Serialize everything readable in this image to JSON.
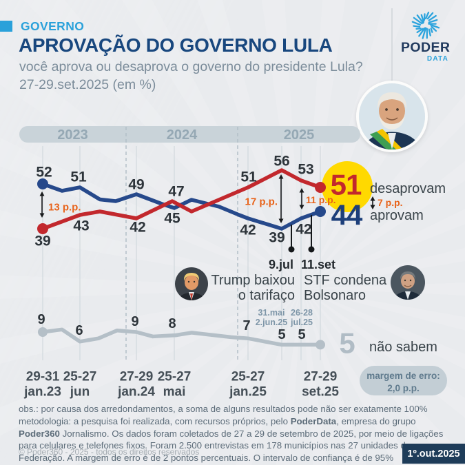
{
  "header": {
    "kicker": "GOVERNO",
    "title": "APROVAÇÃO DO GOVERNO LULA",
    "subtitle_line1": "você aprova ou desaprova o governo do presidente Lula?",
    "subtitle_line2": "27-29.set.2025 (em %)",
    "logo": {
      "word1": "PODER",
      "word2": "DATA"
    }
  },
  "chart_data": {
    "type": "line",
    "title": "Aprovação do governo Lula",
    "unit": "em %",
    "categories": [
      "29-31 jan.23",
      "25-27 jun.23",
      "27-29 jan.24",
      "25-27 mai.24",
      "25-27 jan.25",
      "31.mai-2.jun.25",
      "26-28 jul.25",
      "27-29 set.25"
    ],
    "years": [
      "2023",
      "2024",
      "2025"
    ],
    "series": [
      {
        "id": "aprovam",
        "name": "aprovam",
        "color": "#26498b",
        "values": [
          52,
          51,
          49,
          45,
          42,
          39,
          42,
          44
        ]
      },
      {
        "id": "desaprovam",
        "name": "desaprovam",
        "color": "#c2282d",
        "values": [
          39,
          43,
          42,
          47,
          51,
          56,
          53,
          51
        ]
      },
      {
        "id": "nao_sabem",
        "name": "não sabem",
        "color": "#b4bfc7",
        "values": [
          9,
          6,
          9,
          8,
          7,
          5,
          5,
          5
        ]
      }
    ],
    "drawn_paths_estimated": {
      "aprovam": [
        [
          62,
          52
        ],
        [
          90,
          50
        ],
        [
          116,
          51
        ],
        [
          145,
          47.5
        ],
        [
          168,
          47
        ],
        [
          198,
          49
        ],
        [
          235,
          46.2
        ],
        [
          253,
          45
        ],
        [
          278,
          47.4
        ],
        [
          318,
          45.4
        ],
        [
          347,
          43
        ],
        [
          360,
          42
        ],
        [
          409,
          39
        ],
        [
          437,
          42
        ],
        [
          465,
          44
        ]
      ],
      "desaprovam": [
        [
          62,
          39
        ],
        [
          116,
          43
        ],
        [
          145,
          44
        ],
        [
          198,
          42
        ],
        [
          250,
          47
        ],
        [
          278,
          44
        ],
        [
          360,
          51
        ],
        [
          409,
          56
        ],
        [
          437,
          53
        ],
        [
          465,
          51
        ]
      ],
      "nao_sabem": [
        [
          62,
          9
        ],
        [
          90,
          9.8
        ],
        [
          116,
          6
        ],
        [
          143,
          7
        ],
        [
          170,
          9.5
        ],
        [
          198,
          9
        ],
        [
          222,
          7.6
        ],
        [
          255,
          8
        ],
        [
          278,
          8.8
        ],
        [
          335,
          7.4
        ],
        [
          360,
          7
        ],
        [
          409,
          5
        ],
        [
          437,
          5
        ],
        [
          465,
          5
        ]
      ]
    },
    "axis_labels": [
      {
        "cat_index": 0,
        "line1": "29-31",
        "line2": "jan.23"
      },
      {
        "cat_index": 1,
        "line1": "25-27",
        "line2": "jun"
      },
      {
        "cat_index": 2,
        "line1": "27-29",
        "line2": "jan.24"
      },
      {
        "cat_index": 3,
        "line1": "25-27",
        "line2": "mai"
      },
      {
        "cat_index": 4,
        "line1": "25-27",
        "line2": "jan.25"
      },
      {
        "cat_index": 7,
        "line1": "27-29",
        "line2": "set.25"
      }
    ],
    "extra_date_labels": [
      {
        "line1": "31.mai",
        "line2": "2.jun.25"
      },
      {
        "line1": "26-28",
        "line2": "jul.25"
      }
    ],
    "gap_annotations": [
      {
        "label": "13 p.p."
      },
      {
        "label": "17 p.p."
      },
      {
        "label": "11 p.p."
      },
      {
        "label": "7 p.p."
      }
    ],
    "event_annotations": [
      {
        "date": "9.jul",
        "text_line1": "Trump baixou",
        "text_line2": "o tarifaço"
      },
      {
        "date": "11.set",
        "text_line1": "STF condena",
        "text_line2": "Bolsonaro"
      }
    ],
    "final_values": {
      "desaprovam": "51",
      "aprovam": "44",
      "nao_sabem": "5"
    },
    "legend": {
      "desaprovam": "desaprovam",
      "aprovam": "aprovam",
      "nao_sabem": "não sabem"
    },
    "margin_note": {
      "line1": "margem de erro:",
      "line2": "2,0 p.p."
    }
  },
  "colors": {
    "accent_blue": "#2aa1da",
    "navy_title": "#18477e",
    "approval_blue": "#26498b",
    "disapproval_red": "#c2282d",
    "undecided_gray": "#b4bfc7",
    "highlight_yellow": "#ffd900",
    "annotation_orange": "#e8631a",
    "value_label": "#2d343a",
    "axis_label": "#454f57",
    "year_label": "#95a8b4",
    "pill_gray": "#c9d3d9"
  },
  "footer": {
    "obs": "obs.: por causa dos arredondamentos, a soma de alguns resultados pode não ser exatamente 100%",
    "methodology_segments": [
      {
        "text": "metodologia: a pesquisa foi realizada, com recursos próprios, pelo ",
        "bold": false
      },
      {
        "text": "PoderData",
        "bold": true
      },
      {
        "text": ", empresa do grupo ",
        "bold": false
      },
      {
        "text": "Poder360",
        "bold": true
      },
      {
        "text": " Jornalismo. Os dados foram coletados de 27 a 29 de setembro de 2025, por meio de ligações para celulares e telefones fixos. Foram 2.500 entrevistas em 178 municípios nas 27 unidades da Federação. A margem de erro é de 2 pontos percentuais. O intervalo de confiança é de 95%",
        "bold": false
      }
    ],
    "copyright": "© Poder360 - 2025 - todos os direitos reservados",
    "date_badge": "1º.out.2025"
  }
}
